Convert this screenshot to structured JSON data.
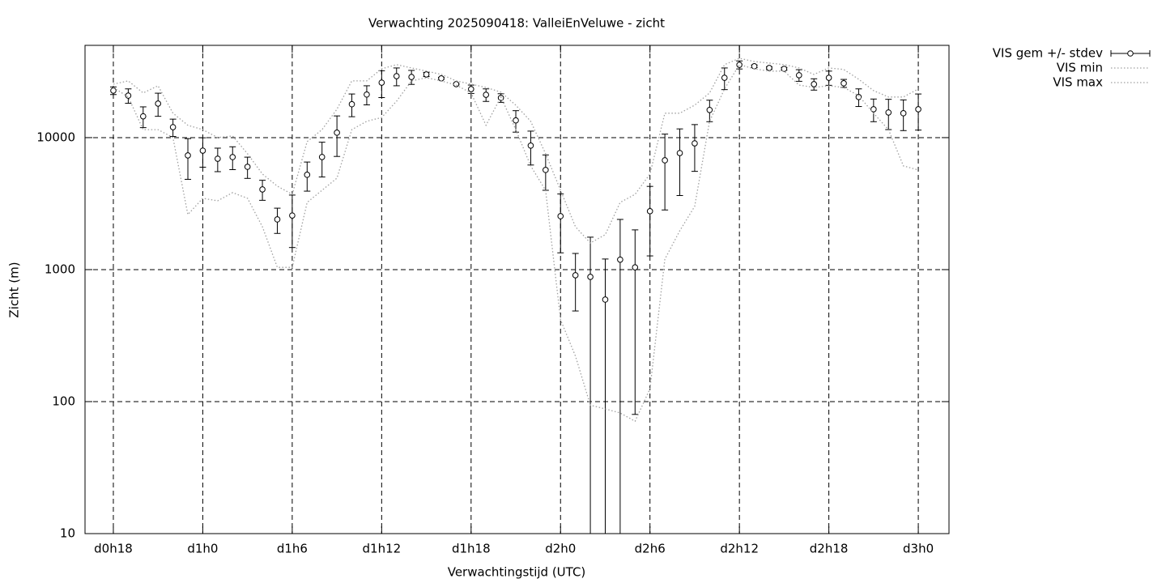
{
  "chart_data": {
    "type": "errorbar",
    "title": "Verwachting 2025090418: ValleiEnVeluwe - zicht",
    "xlabel": "Verwachtingstijd (UTC)",
    "ylabel": "Zicht (m)",
    "x": [
      18,
      19,
      20,
      21,
      22,
      23,
      24,
      25,
      26,
      27,
      28,
      29,
      30,
      31,
      32,
      33,
      34,
      35,
      36,
      37,
      38,
      39,
      40,
      41,
      42,
      43,
      44,
      45,
      46,
      47,
      48,
      49,
      50,
      51,
      52,
      53,
      54,
      55,
      56,
      57,
      58,
      59,
      60,
      61,
      62,
      63,
      64,
      65,
      66,
      67,
      68,
      69,
      70,
      71,
      72
    ],
    "series": [
      {
        "name": "VIS gem +/- stdev",
        "color": "#000000",
        "style": "errorbars",
        "values": [
          22700,
          20800,
          14500,
          18100,
          12000,
          7330,
          7970,
          6920,
          7120,
          6010,
          4050,
          2400,
          2570,
          5230,
          7130,
          10900,
          17900,
          21200,
          26100,
          29200,
          28800,
          30100,
          28100,
          25400,
          23300,
          21100,
          20000,
          13500,
          8700,
          5690,
          2540,
          906,
          881,
          593,
          1190,
          1040,
          2770,
          6730,
          7640,
          9050,
          16200,
          28400,
          35600,
          34700,
          33700,
          33200,
          29700,
          25400,
          28400,
          25800,
          20300,
          16400,
          15500,
          15300,
          16400
        ],
        "errors": [
          1500,
          2600,
          2600,
          3600,
          1800,
          2500,
          2000,
          1400,
          1400,
          1100,
          700,
          520,
          1100,
          1300,
          2100,
          3700,
          3500,
          3500,
          6000,
          4500,
          3500,
          1100,
          500,
          300,
          1700,
          2300,
          1500,
          2500,
          2500,
          1700,
          1200,
          420,
          880,
          610,
          1210,
          960,
          1500,
          3900,
          4000,
          3500,
          3000,
          5300,
          2500,
          800,
          700,
          800,
          3000,
          2500,
          3500,
          1800,
          3100,
          3200,
          4000,
          4000,
          5000
        ]
      },
      {
        "name": "VIS min",
        "color": "#a0a0a0",
        "style": "dotted",
        "values": [
          24000,
          20300,
          11500,
          11500,
          10000,
          2610,
          3470,
          3320,
          3830,
          3470,
          2110,
          1040,
          1040,
          3230,
          3990,
          4930,
          11500,
          13300,
          14200,
          18900,
          26900,
          28400,
          26900,
          25000,
          21800,
          12400,
          20300,
          11500,
          6100,
          3990,
          417,
          221,
          94,
          88,
          82,
          71,
          125,
          1200,
          1970,
          3010,
          13300,
          23400,
          35700,
          33200,
          31900,
          31900,
          25000,
          24000,
          24700,
          24000,
          20800,
          15300,
          11500,
          6100,
          5690
        ]
      },
      {
        "name": "VIS max",
        "color": "#a0a0a0",
        "style": "dotted",
        "values": [
          25400,
          26900,
          21800,
          24700,
          15300,
          12400,
          11500,
          10000,
          10300,
          7540,
          5300,
          4290,
          3720,
          9320,
          11500,
          16400,
          26900,
          26900,
          33200,
          35700,
          33700,
          31900,
          30100,
          26900,
          25400,
          24000,
          22100,
          17600,
          13300,
          7540,
          3990,
          2110,
          1590,
          1840,
          3230,
          3720,
          5300,
          15300,
          15300,
          17600,
          21800,
          35700,
          39900,
          37700,
          36700,
          35700,
          33700,
          30100,
          33700,
          32800,
          27700,
          22700,
          20300,
          20300,
          23400
        ]
      }
    ],
    "xlim": [
      16.1,
      74.06
    ],
    "xticks": [
      {
        "value": 18,
        "label": "d0h18"
      },
      {
        "value": 24,
        "label": "d1h0"
      },
      {
        "value": 30,
        "label": "d1h6"
      },
      {
        "value": 36,
        "label": "d1h12"
      },
      {
        "value": 42,
        "label": "d1h18"
      },
      {
        "value": 48,
        "label": "d2h0"
      },
      {
        "value": 54,
        "label": "d2h6"
      },
      {
        "value": 60,
        "label": "d2h12"
      },
      {
        "value": 66,
        "label": "d2h18"
      },
      {
        "value": 72,
        "label": "d3h0"
      }
    ],
    "ylim": [
      10,
      50000
    ],
    "yticks": [
      10,
      100,
      1000,
      10000
    ],
    "log_y": true,
    "grid": true,
    "legend": "outside-right"
  }
}
